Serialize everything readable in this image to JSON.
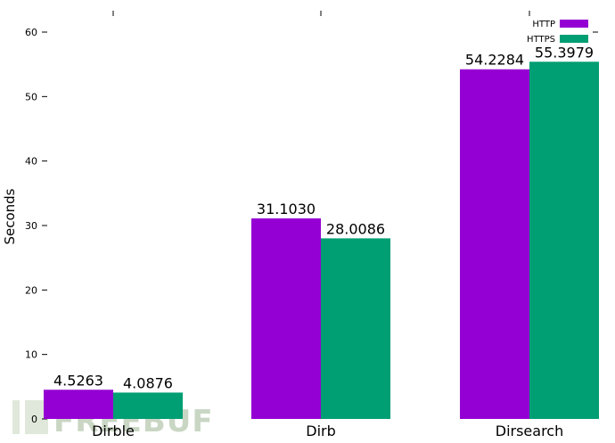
{
  "chart_data": {
    "type": "bar",
    "title": "",
    "xlabel": "",
    "ylabel": "Seconds",
    "categories": [
      "Dirble",
      "Dirb",
      "Dirsearch"
    ],
    "series": [
      {
        "name": "HTTP",
        "color": "#9400d3",
        "values": [
          4.5263,
          31.103,
          54.2284
        ],
        "labels": [
          "4.5263",
          "31.1030",
          "54.2284"
        ]
      },
      {
        "name": "HTTPS",
        "color": "#009e73",
        "values": [
          4.0876,
          28.0086,
          55.3979
        ],
        "labels": [
          "4.0876",
          "28.0086",
          "55.3979"
        ]
      }
    ],
    "ylim": [
      0,
      65
    ],
    "yticks": [
      "0",
      "10",
      "20",
      "30",
      "40",
      "50",
      "60"
    ],
    "grid": false,
    "legend": "top-right"
  },
  "watermark": "FREEBUF"
}
